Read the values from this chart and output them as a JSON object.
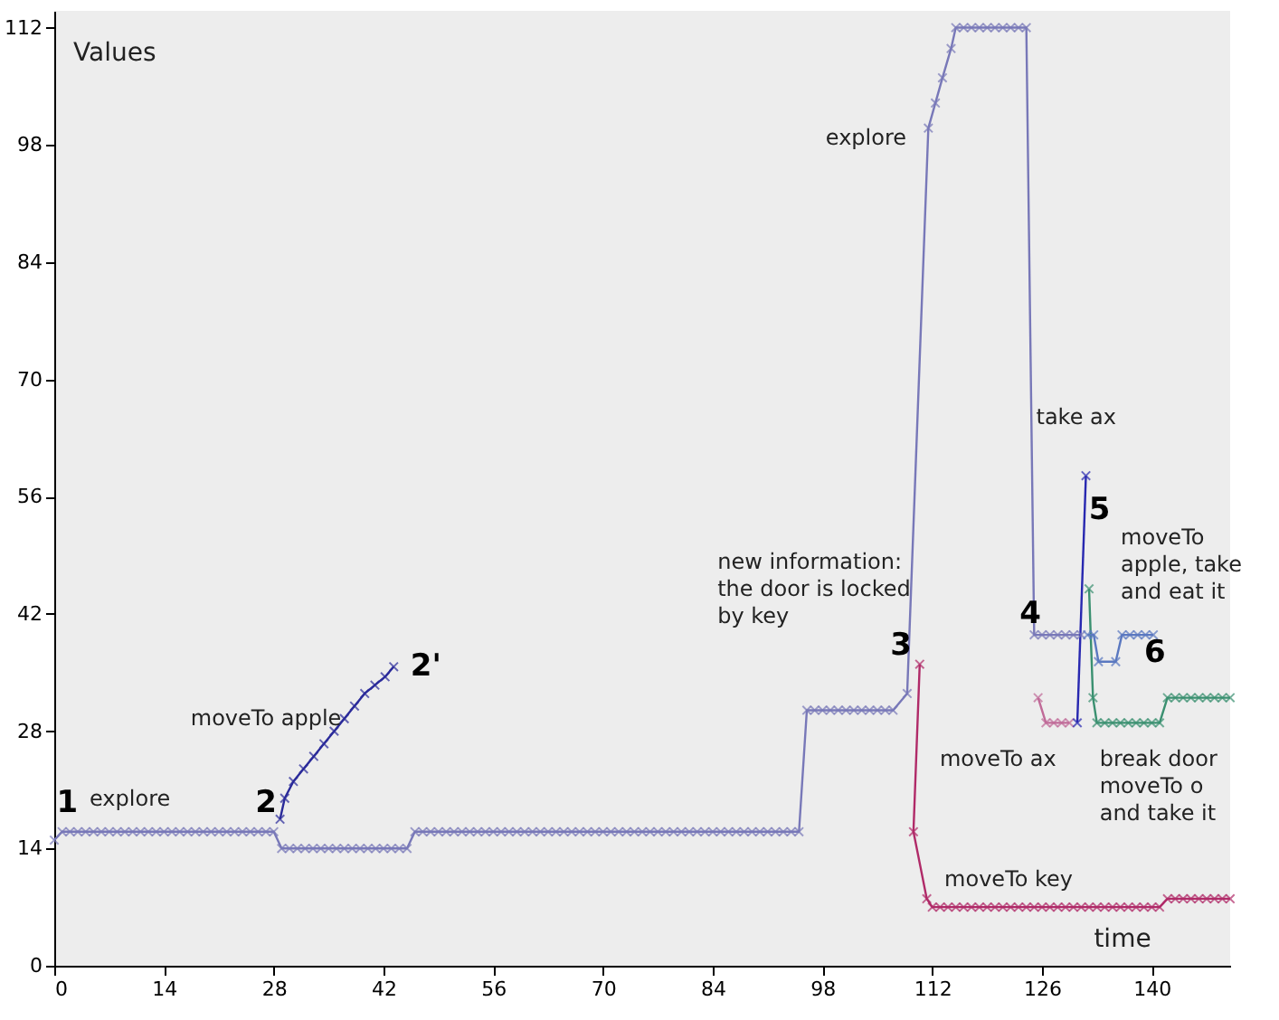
{
  "chart_data": {
    "type": "line",
    "xlabel": "time",
    "ylabel": "Values",
    "xlim": [
      0,
      150
    ],
    "ylim": [
      0,
      114
    ],
    "xticks": [
      0,
      14,
      28,
      42,
      56,
      70,
      84,
      98,
      112,
      126,
      140
    ],
    "yticks": [
      0,
      14,
      28,
      42,
      56,
      70,
      84,
      98,
      112
    ],
    "marker": "cross",
    "line_style": "solid",
    "grid": false,
    "legend": false,
    "series": [
      {
        "color": "#7878b8",
        "x": [
          0,
          1,
          2,
          3,
          4,
          5,
          6,
          7,
          8,
          9,
          10,
          11,
          12,
          13,
          14,
          15,
          16,
          17,
          18,
          19,
          20,
          21,
          22,
          23,
          24,
          25,
          26,
          27,
          28,
          29,
          30,
          31,
          32,
          33,
          34,
          35,
          36,
          37,
          38,
          39,
          40,
          41,
          42,
          43,
          44,
          45,
          46,
          47,
          48,
          49,
          50,
          51,
          52,
          53,
          54,
          55,
          56,
          57,
          58,
          59,
          60,
          61,
          62,
          63,
          64,
          65,
          66,
          67,
          68,
          69,
          70,
          71,
          72,
          73,
          74,
          75,
          76,
          77,
          78,
          79,
          80,
          81,
          82,
          83,
          84,
          85,
          86,
          87,
          88,
          89,
          90,
          91,
          92,
          93,
          94,
          95,
          96,
          97,
          98,
          99,
          100,
          101,
          102,
          103,
          104,
          105,
          106,
          107,
          108.8,
          111.5,
          112.4,
          113.3,
          114.4,
          115,
          116,
          117,
          118,
          119,
          120,
          121,
          122,
          123,
          124,
          125,
          126,
          127,
          128,
          129,
          130,
          131
        ],
        "values": [
          15,
          16,
          16,
          16,
          16,
          16,
          16,
          16,
          16,
          16,
          16,
          16,
          16,
          16,
          16,
          16,
          16,
          16,
          16,
          16,
          16,
          16,
          16,
          16,
          16,
          16,
          16,
          16,
          16,
          14,
          14,
          14,
          14,
          14,
          14,
          14,
          14,
          14,
          14,
          14,
          14,
          14,
          14,
          14,
          14,
          14,
          16,
          16,
          16,
          16,
          16,
          16,
          16,
          16,
          16,
          16,
          16,
          16,
          16,
          16,
          16,
          16,
          16,
          16,
          16,
          16,
          16,
          16,
          16,
          16,
          16,
          16,
          16,
          16,
          16,
          16,
          16,
          16,
          16,
          16,
          16,
          16,
          16,
          16,
          16,
          16,
          16,
          16,
          16,
          16,
          16,
          16,
          16,
          16,
          16,
          16,
          30.5,
          30.5,
          30.5,
          30.5,
          30.5,
          30.5,
          30.5,
          30.5,
          30.5,
          30.5,
          30.5,
          30.5,
          32.5,
          100,
          103,
          106,
          109.5,
          112,
          112,
          112,
          112,
          112,
          112,
          112,
          112,
          112,
          112,
          39.5,
          39.5,
          39.5,
          39.5,
          39.5,
          39.5,
          39.5
        ]
      },
      {
        "color": "#2a2a9a",
        "x": [
          28.8,
          29.4,
          30.5,
          31.8,
          33.1,
          34.4,
          35.7,
          37,
          38.3,
          39.6,
          40.9,
          42.2,
          43.3
        ],
        "values": [
          17.5,
          20,
          22,
          23.5,
          25,
          26.5,
          28,
          29.5,
          31,
          32.5,
          33.5,
          34.5,
          35.7
        ]
      },
      {
        "color": "#b02a68",
        "x": [
          110.4,
          109.6,
          111.3,
          112,
          113,
          114,
          115,
          116,
          117,
          118,
          119,
          120,
          121,
          122,
          123,
          124,
          125,
          126,
          127,
          128,
          129,
          130,
          131,
          132,
          133,
          134,
          135,
          136,
          137,
          138,
          139,
          140,
          141,
          142,
          143,
          144,
          145,
          146,
          147,
          148,
          149,
          150
        ],
        "values": [
          36,
          16,
          8,
          7,
          7,
          7,
          7,
          7,
          7,
          7,
          7,
          7,
          7,
          7,
          7,
          7,
          7,
          7,
          7,
          7,
          7,
          7,
          7,
          7,
          7,
          7,
          7,
          7,
          7,
          7,
          7,
          7,
          7,
          8,
          8,
          8,
          8,
          8,
          8,
          8,
          8,
          8
        ]
      },
      {
        "color": "#c06a98",
        "x": [
          125.5,
          126.5,
          127.5,
          128.5,
          129.5
        ],
        "values": [
          32,
          29,
          29,
          29,
          29
        ]
      },
      {
        "color": "#2828b0",
        "x": [
          130.5,
          131.6
        ],
        "values": [
          29,
          58.5
        ]
      },
      {
        "color": "#3a9070",
        "x": [
          132,
          132.5,
          133,
          134,
          135,
          136,
          137,
          138,
          139,
          140,
          141,
          142,
          143,
          144,
          145,
          146,
          147,
          148,
          149,
          150
        ],
        "values": [
          45,
          32,
          29,
          29,
          29,
          29,
          29,
          29,
          29,
          29,
          29,
          32,
          32,
          32,
          32,
          32,
          32,
          32,
          32,
          32
        ]
      },
      {
        "color": "#5a78c0",
        "x": [
          131.8,
          132.6,
          133.2,
          135.4,
          136.2,
          137.2,
          138.2,
          139.2,
          140.2
        ],
        "values": [
          39.5,
          39.5,
          36.3,
          36.3,
          39.5,
          39.5,
          39.5,
          39.5,
          39.5
        ]
      }
    ],
    "annotations": [
      "1",
      "explore",
      "2",
      "moveTo apple",
      "2'",
      "explore",
      "new information:\nthe door is locked\nby key",
      "3",
      "take ax",
      "5",
      "moveTo\napple, take\nand eat it",
      "4",
      "6",
      "moveTo ax",
      "break door\nmoveTo o\nand take it",
      "moveTo key"
    ]
  }
}
